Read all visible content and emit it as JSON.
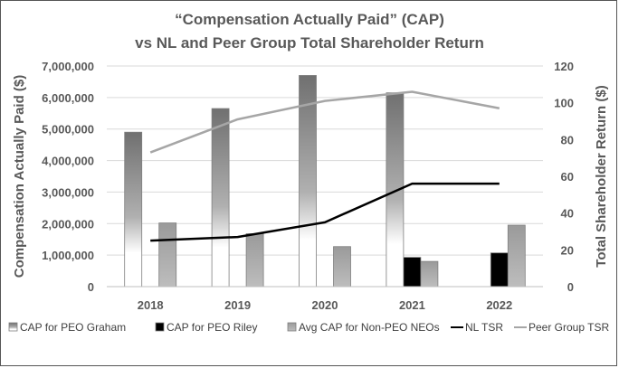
{
  "chart_data": {
    "type": "bar",
    "title": [
      "“Compensation Actually Paid” (CAP)",
      "vs NL and Peer Group Total Shareholder Return"
    ],
    "categories": [
      "2018",
      "2019",
      "2020",
      "2021",
      "2022"
    ],
    "y_left": {
      "label": "Compensation Actually Paid ($)",
      "min": 0,
      "max": 7000000,
      "step": 1000000,
      "ticks": [
        "0",
        "1,000,000",
        "2,000,000",
        "3,000,000",
        "4,000,000",
        "5,000,000",
        "6,000,000",
        "7,000,000"
      ]
    },
    "y_right": {
      "label": "Total Shareholder Return ($)",
      "min": 0,
      "max": 120,
      "step": 20,
      "ticks": [
        "0",
        "20",
        "40",
        "60",
        "80",
        "100",
        "120"
      ]
    },
    "bar_series": [
      {
        "name": "CAP for PEO Graham",
        "style": "gradient",
        "values": [
          4900000,
          5650000,
          6700000,
          6150000,
          null
        ]
      },
      {
        "name": "CAP for PEO Riley",
        "style": "solid",
        "color": "#000000",
        "values": [
          null,
          null,
          null,
          930000,
          1070000
        ]
      },
      {
        "name": "Avg CAP for Non-PEO NEOs",
        "style": "gradient-gray",
        "values": [
          2020000,
          1680000,
          1270000,
          800000,
          1950000
        ]
      }
    ],
    "line_series": [
      {
        "name": "NL TSR",
        "color": "#000000",
        "axis": "right",
        "values": [
          25,
          27,
          35,
          56,
          56
        ]
      },
      {
        "name": "Peer Group TSR",
        "color": "#a6a6a6",
        "axis": "right",
        "values": [
          73,
          91,
          101,
          106,
          97
        ]
      }
    ],
    "grid": true,
    "legend_position": "bottom"
  }
}
